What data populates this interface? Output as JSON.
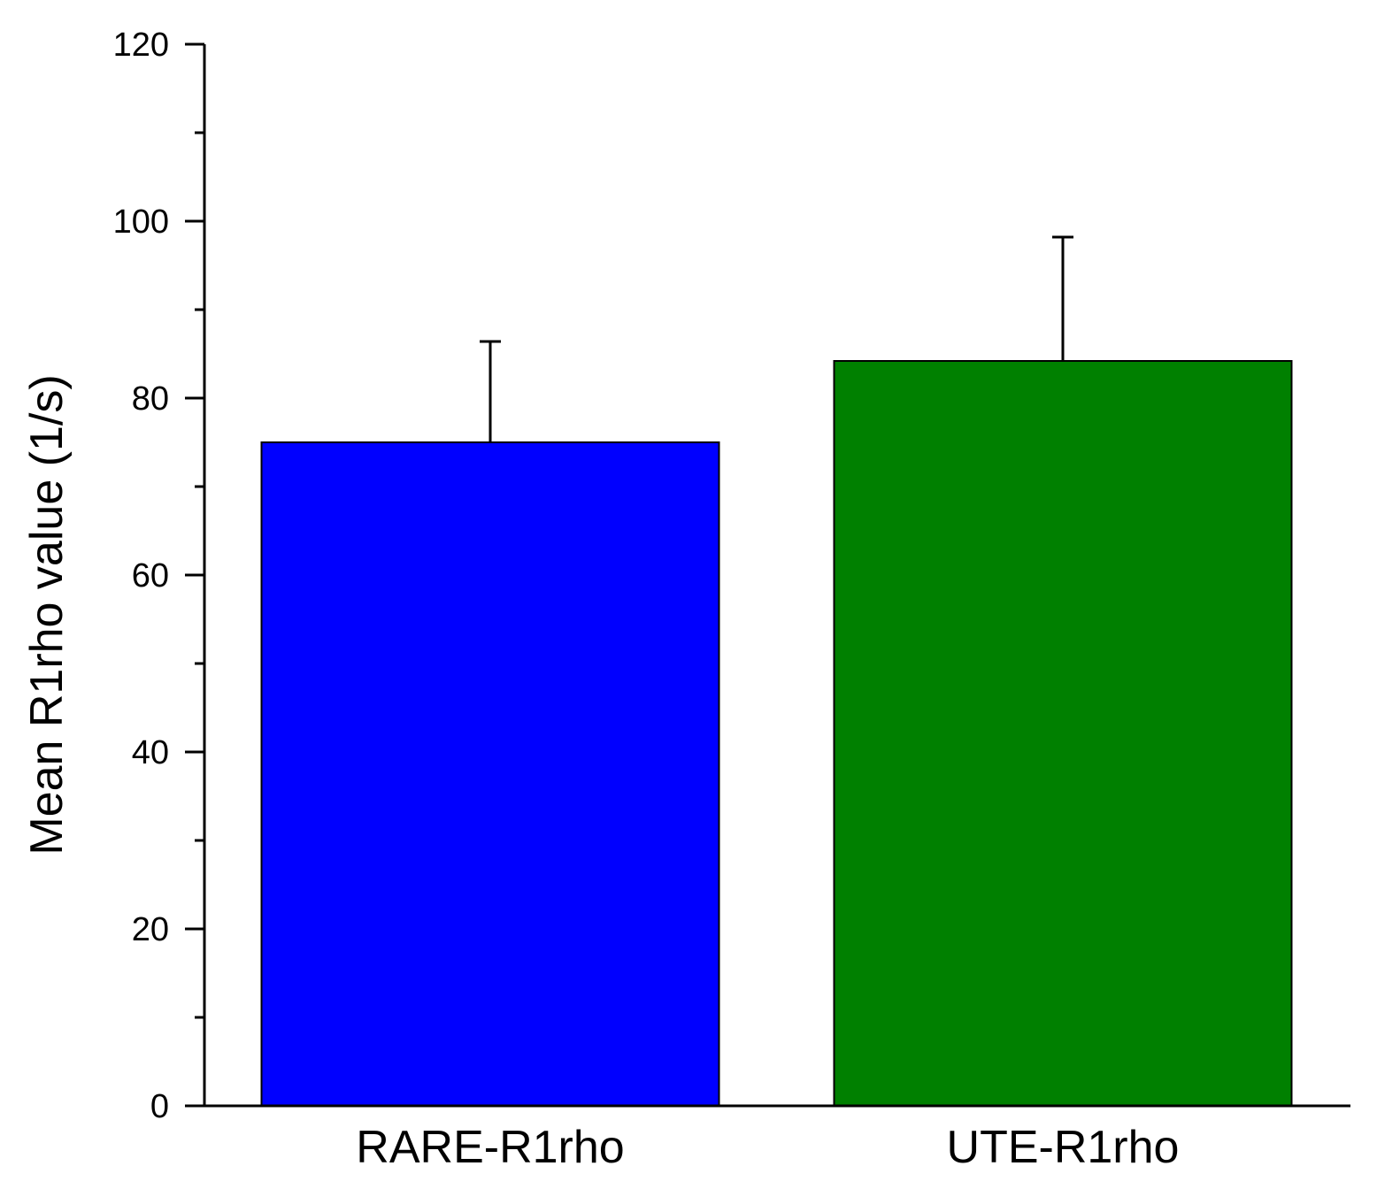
{
  "chart_data": {
    "type": "bar",
    "categories": [
      "RARE-R1rho",
      "UTE-R1rho"
    ],
    "values": [
      75,
      84.2
    ],
    "error_plus": [
      11.4,
      14.0
    ],
    "colors": [
      "#0000ff",
      "#008000"
    ],
    "title": "",
    "xlabel": "",
    "ylabel": "Mean R1rho value (1/s)",
    "ylim": [
      0,
      120
    ],
    "y_major_ticks": [
      0,
      20,
      40,
      60,
      80,
      100,
      120
    ],
    "y_tick_labels": [
      "0",
      "20",
      "40",
      "60",
      "80",
      "100",
      "120"
    ],
    "y_minor_ticks": [
      10,
      30,
      50,
      70,
      90,
      110
    ],
    "grid": false,
    "legend": "none"
  }
}
